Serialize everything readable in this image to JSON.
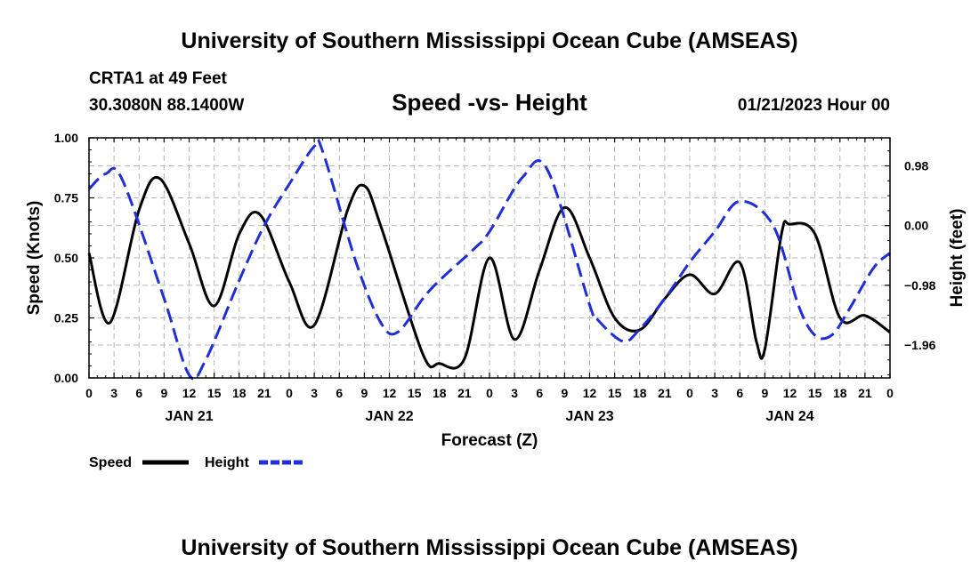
{
  "header": {
    "title": "University of Southern Mississippi Ocean Cube (AMSEAS)",
    "footer_title": "University of Southern Mississippi Ocean Cube (AMSEAS)",
    "station": "CRTA1 at 49 Feet",
    "coords": "30.3080N  88.1400W",
    "date_hour": "01/21/2023 Hour 00"
  },
  "chart_data": {
    "type": "line",
    "title": "Speed -vs- Height",
    "xlabel": "Forecast (Z)",
    "ylabel": "Speed (Knots)",
    "y2label": "Height (feet)",
    "x_tick_hours": [
      0,
      3,
      6,
      9,
      12,
      15,
      18,
      21,
      24,
      27,
      30,
      33,
      36,
      39,
      42,
      45,
      48,
      51,
      54,
      57,
      60,
      63,
      66,
      69,
      72,
      75,
      78,
      81,
      84,
      87,
      90,
      93,
      96
    ],
    "x_tick_labels": [
      "0",
      "3",
      "6",
      "9",
      "12",
      "15",
      "18",
      "21",
      "0",
      "3",
      "6",
      "9",
      "12",
      "15",
      "18",
      "21",
      "0",
      "3",
      "6",
      "9",
      "12",
      "15",
      "18",
      "21",
      "0",
      "3",
      "6",
      "9",
      "12",
      "15",
      "18",
      "21",
      "0"
    ],
    "date_labels": [
      {
        "hour": 12,
        "label": "JAN 21"
      },
      {
        "hour": 36,
        "label": "JAN 22"
      },
      {
        "hour": 60,
        "label": "JAN 23"
      },
      {
        "hour": 84,
        "label": "JAN 24"
      }
    ],
    "xlim": [
      0,
      96
    ],
    "ylim": [
      0,
      1.0
    ],
    "y_ticks": [
      0.0,
      0.25,
      0.5,
      0.75,
      1.0
    ],
    "y_tick_labels": [
      "0.00",
      "0.25",
      "0.50",
      "0.75",
      "1.00"
    ],
    "y2lim": [
      -2.5,
      1.44
    ],
    "y2_ticks": [
      0.98,
      0.0,
      -0.98,
      -1.96
    ],
    "y2_tick_labels": [
      "0.98",
      "0.00",
      "−0.98",
      "−1.96"
    ],
    "series": [
      {
        "name": "Speed",
        "axis": "left",
        "color": "#000000",
        "style": "solid",
        "x": [
          0,
          2.5,
          6,
          8.5,
          12,
          15,
          18,
          20.5,
          24,
          27,
          31,
          33,
          35,
          40,
          42,
          45,
          48,
          51,
          54,
          57,
          60,
          63,
          66,
          69,
          72,
          75,
          78,
          80,
          81,
          83,
          84,
          87,
          90,
          93,
          96
        ],
        "y": [
          0.52,
          0.23,
          0.7,
          0.83,
          0.56,
          0.3,
          0.6,
          0.68,
          0.4,
          0.22,
          0.7,
          0.8,
          0.63,
          0.1,
          0.06,
          0.08,
          0.5,
          0.16,
          0.45,
          0.71,
          0.5,
          0.25,
          0.2,
          0.33,
          0.43,
          0.35,
          0.48,
          0.15,
          0.12,
          0.6,
          0.64,
          0.6,
          0.25,
          0.26,
          0.19
        ]
      },
      {
        "name": "Height",
        "axis": "right",
        "color": "#1f2ed6",
        "style": "dashed",
        "x": [
          0,
          2,
          4,
          9,
          12,
          14,
          18,
          21,
          24,
          27,
          28,
          32,
          35,
          37,
          40,
          42,
          46,
          48,
          52,
          55,
          60,
          61,
          64,
          66,
          69,
          72,
          75,
          78,
          82,
          85,
          87,
          89,
          91,
          94,
          96
        ],
        "y": [
          0.6,
          0.85,
          0.75,
          -1.2,
          -2.45,
          -2.2,
          -0.9,
          0.0,
          0.68,
          1.3,
          1.22,
          -0.6,
          -1.6,
          -1.75,
          -1.2,
          -0.9,
          -0.4,
          -0.1,
          0.8,
          0.9,
          -1.3,
          -1.55,
          -1.9,
          -1.7,
          -1.2,
          -0.6,
          -0.1,
          0.4,
          0.0,
          -1.3,
          -1.8,
          -1.8,
          -1.4,
          -0.7,
          -0.45
        ]
      }
    ],
    "legend": [
      {
        "label": "Speed",
        "color": "#000000",
        "style": "solid"
      },
      {
        "label": "Height",
        "color": "#1f2ed6",
        "style": "dashed"
      }
    ],
    "legend_position": "bottom-left",
    "grid": true
  }
}
